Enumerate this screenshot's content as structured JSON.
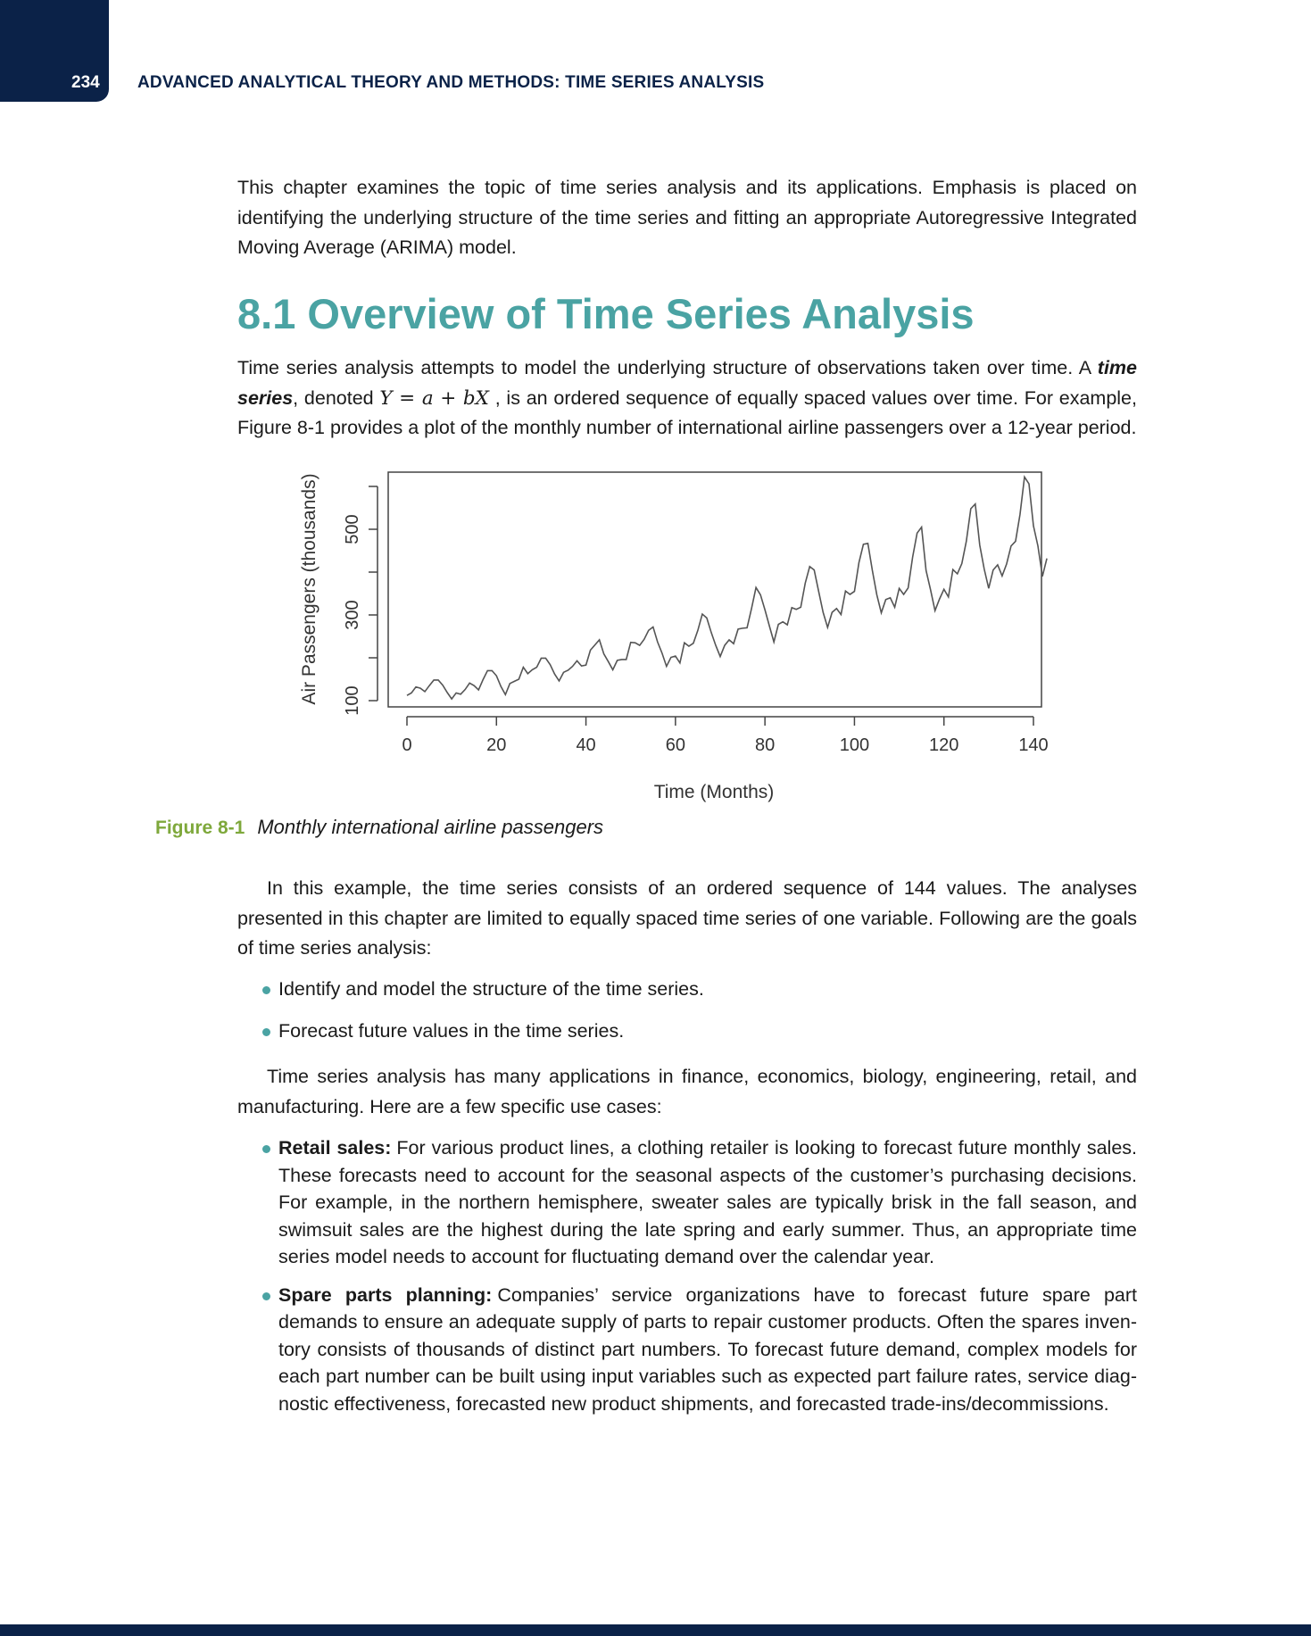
{
  "header": {
    "page_number": "234",
    "running_title": "ADVANCED ANALYTICAL THEORY AND METHODS: TIME SERIES ANALYSIS"
  },
  "intro": {
    "text": "This chapter examines the topic of time series analysis and its applications. Emphasis is placed on identifying the underlying structure of the time series and fitting an appropriate Autoregressive Integrated Moving Average (ARIMA) model."
  },
  "section": {
    "heading": "8.1 Overview of Time Series Analysis",
    "para1_a": "Time series analysis attempts to model the underlying structure of observations taken over time. A ",
    "para1_term": "time series",
    "para1_b": ", denoted ",
    "para1_formula": "Y = a + bX",
    "para1_c": " , is an ordered sequence of equally spaced values over time. For example, Figure 8-1 provides a plot of the monthly number of international airline passengers over a 12-year period."
  },
  "figure": {
    "label": "Figure 8-1",
    "title": "Monthly international airline passengers"
  },
  "chart_data": {
    "type": "line",
    "title": "",
    "xlabel": "Time (Months)",
    "ylabel": "Air Passengers (thousands)",
    "xlim": [
      0,
      144
    ],
    "ylim": [
      104,
      622
    ],
    "x_ticks": [
      0,
      20,
      40,
      60,
      80,
      100,
      120,
      140
    ],
    "y_ticks": [
      100,
      200,
      300,
      400,
      500,
      600
    ],
    "y_tick_labels": [
      "100",
      "",
      "300",
      "",
      "500",
      ""
    ],
    "grid": false,
    "x": [
      1,
      2,
      3,
      4,
      5,
      6,
      7,
      8,
      9,
      10,
      11,
      12,
      13,
      14,
      15,
      16,
      17,
      18,
      19,
      20,
      21,
      22,
      23,
      24,
      25,
      26,
      27,
      28,
      29,
      30,
      31,
      32,
      33,
      34,
      35,
      36,
      37,
      38,
      39,
      40,
      41,
      42,
      43,
      44,
      45,
      46,
      47,
      48,
      49,
      50,
      51,
      52,
      53,
      54,
      55,
      56,
      57,
      58,
      59,
      60,
      61,
      62,
      63,
      64,
      65,
      66,
      67,
      68,
      69,
      70,
      71,
      72,
      73,
      74,
      75,
      76,
      77,
      78,
      79,
      80,
      81,
      82,
      83,
      84,
      85,
      86,
      87,
      88,
      89,
      90,
      91,
      92,
      93,
      94,
      95,
      96,
      97,
      98,
      99,
      100,
      101,
      102,
      103,
      104,
      105,
      106,
      107,
      108,
      109,
      110,
      111,
      112,
      113,
      114,
      115,
      116,
      117,
      118,
      119,
      120,
      121,
      122,
      123,
      124,
      125,
      126,
      127,
      128,
      129,
      130,
      131,
      132,
      133,
      134,
      135,
      136,
      137,
      138,
      139,
      140,
      141,
      142,
      143,
      144
    ],
    "values": [
      112,
      118,
      132,
      129,
      121,
      135,
      148,
      148,
      136,
      119,
      104,
      118,
      115,
      126,
      141,
      135,
      125,
      149,
      170,
      170,
      158,
      133,
      114,
      140,
      145,
      150,
      178,
      163,
      172,
      178,
      199,
      199,
      184,
      162,
      146,
      166,
      171,
      180,
      193,
      181,
      183,
      218,
      230,
      242,
      209,
      191,
      172,
      194,
      196,
      196,
      236,
      235,
      229,
      243,
      264,
      272,
      237,
      211,
      180,
      201,
      204,
      188,
      235,
      227,
      234,
      264,
      302,
      293,
      259,
      229,
      203,
      229,
      242,
      233,
      267,
      269,
      270,
      315,
      364,
      347,
      312,
      274,
      237,
      278,
      284,
      277,
      317,
      313,
      318,
      374,
      413,
      405,
      355,
      306,
      271,
      306,
      315,
      301,
      356,
      348,
      355,
      422,
      465,
      467,
      404,
      347,
      305,
      336,
      340,
      318,
      362,
      348,
      363,
      435,
      491,
      505,
      404,
      359,
      310,
      337,
      360,
      342,
      406,
      396,
      420,
      472,
      548,
      559,
      463,
      407,
      362,
      405,
      417,
      391,
      419,
      461,
      472,
      535,
      622,
      606,
      508,
      461,
      390,
      432
    ]
  },
  "para2": {
    "text": "In this example, the time series consists of an ordered sequence of 144 values. The analyses presented in this chapter are limited to equally spaced time series of one variable. Following are the goals of time series analysis:"
  },
  "goals": [
    "Identify and model the structure of the time series.",
    "Forecast future values in the time series."
  ],
  "para3": {
    "text": "Time series analysis has many applications in finance, economics, biology, engineering, retail, and manufacturing. Here are a few specific use cases:"
  },
  "use_cases": [
    {
      "lead": "Retail sales:",
      "text": "For various product lines, a clothing retailer is looking to forecast future monthly sales. These forecasts need to account for the seasonal aspects of the customer’s purchasing decisions. For example, in the northern hemisphere, sweater sales are typically brisk in the fall season, and swimsuit sales are the highest during the late spring and early summer. Thus, an appropriate time series model needs to account for fluctuating demand over the calendar year."
    },
    {
      "lead": "Spare parts planning:",
      "text": "Companies’ service organizations have to forecast future spare part demands to ensure an adequate supply of parts to repair customer products. Often the spares inven-tory consists of thousands of distinct part numbers. To forecast future demand, complex models for each part number can be built using input variables such as expected part failure rates, service diag-nostic effectiveness, forecasted new product shipments, and forecasted trade-ins/decommissions."
    }
  ],
  "colors": {
    "accent_teal": "#4aa3a3",
    "figure_label_green": "#7ea83b",
    "navy": "#0b2248"
  }
}
